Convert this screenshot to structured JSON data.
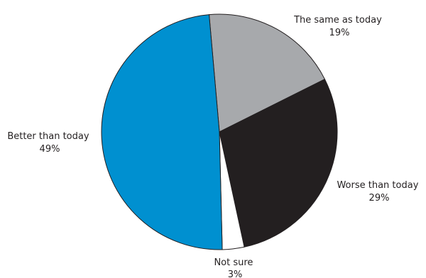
{
  "chart_data": {
    "type": "pie",
    "title": "",
    "slices": [
      {
        "label": "The same as today",
        "value": 19,
        "value_text": "19%",
        "color": "#a7a9ac"
      },
      {
        "label": "Worse than today",
        "value": 29,
        "value_text": "29%",
        "color": "#231f20"
      },
      {
        "label": "Not sure",
        "value": 3,
        "value_text": "3%",
        "color": "#ffffff"
      },
      {
        "label": "Better than today",
        "value": 49,
        "value_text": "49%",
        "color": "#0090d0"
      }
    ],
    "start_angle_deg": -5,
    "direction": "clockwise",
    "legend": "none",
    "stroke_color": "#231f20"
  }
}
